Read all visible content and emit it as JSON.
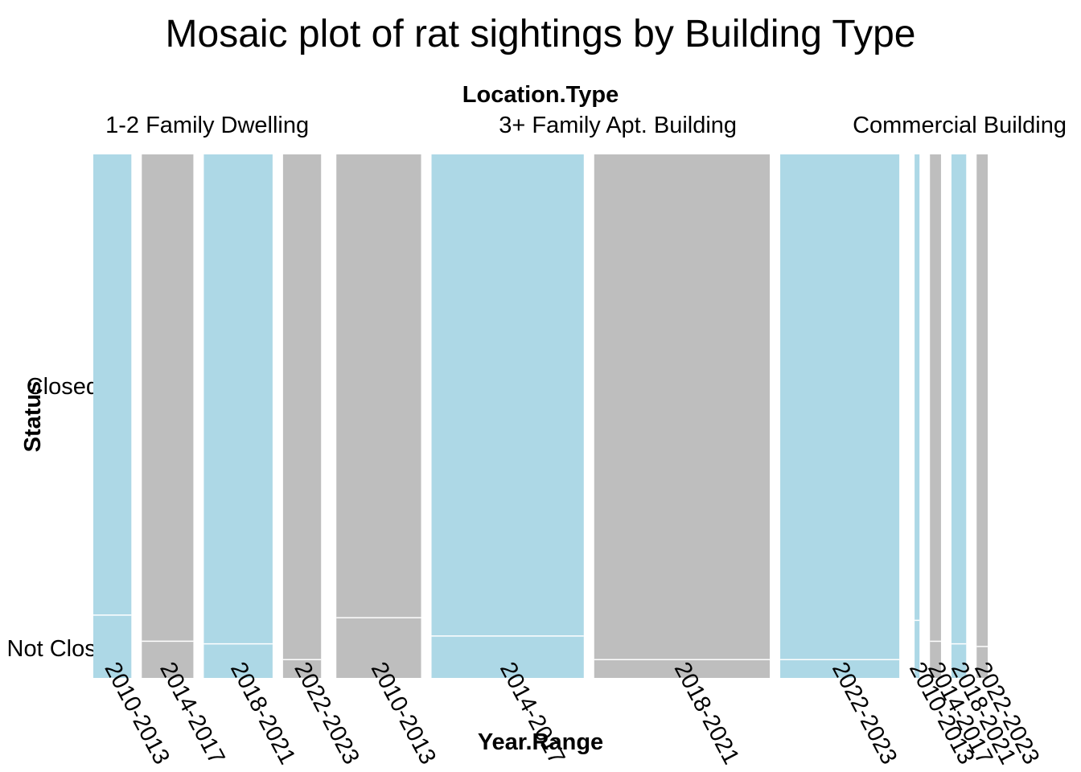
{
  "chart_data": {
    "type": "mosaic",
    "title": "Mosaic plot of rat sightings by Building Type",
    "top_axis_label": "Location.Type",
    "xlabel": "Year.Range",
    "ylabel": "Status",
    "y_categories": [
      "Closed",
      "Not Closed"
    ],
    "colors": {
      "light": "#add8e6",
      "gray": "#bebebe",
      "divider": "#ffffff"
    },
    "groups": [
      {
        "name": "1-2 Family Dwelling",
        "cells": [
          {
            "year": "2010-2013",
            "share": 0.031,
            "not_closed": 0.12,
            "color": "light"
          },
          {
            "year": "2014-2017",
            "share": 0.042,
            "not_closed": 0.07,
            "color": "gray"
          },
          {
            "year": "2018-2021",
            "share": 0.056,
            "not_closed": 0.065,
            "color": "light"
          },
          {
            "year": "2022-2023",
            "share": 0.031,
            "not_closed": 0.035,
            "color": "gray"
          }
        ]
      },
      {
        "name": "3+ Family Apt. Building",
        "cells": [
          {
            "year": "2010-2013",
            "share": 0.069,
            "not_closed": 0.115,
            "color": "gray"
          },
          {
            "year": "2014-2017",
            "share": 0.124,
            "not_closed": 0.08,
            "color": "light"
          },
          {
            "year": "2018-2021",
            "share": 0.143,
            "not_closed": 0.035,
            "color": "gray"
          },
          {
            "year": "2022-2023",
            "share": 0.097,
            "not_closed": 0.035,
            "color": "light"
          }
        ]
      },
      {
        "name": "Commercial Building",
        "cells": [
          {
            "year": "2010-2013",
            "share": 0.004,
            "not_closed": 0.11,
            "color": "light"
          },
          {
            "year": "2014-2017",
            "share": 0.009,
            "not_closed": 0.07,
            "color": "gray"
          },
          {
            "year": "2018-2021",
            "share": 0.012,
            "not_closed": 0.065,
            "color": "light"
          },
          {
            "year": "2022-2023",
            "share": 0.009,
            "not_closed": 0.06,
            "color": "gray"
          }
        ]
      }
    ]
  }
}
